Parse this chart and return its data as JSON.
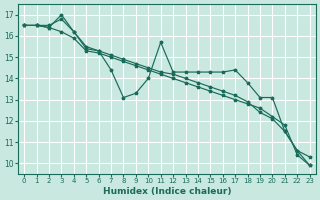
{
  "xlabel": "Humidex (Indice chaleur)",
  "xlim": [
    -0.5,
    23.5
  ],
  "ylim": [
    9.5,
    17.5
  ],
  "yticks": [
    10,
    11,
    12,
    13,
    14,
    15,
    16,
    17
  ],
  "xticks": [
    0,
    1,
    2,
    3,
    4,
    5,
    6,
    7,
    8,
    9,
    10,
    11,
    12,
    13,
    14,
    15,
    16,
    17,
    18,
    19,
    20,
    21,
    22,
    23
  ],
  "bg_color": "#c8e8e0",
  "grid_color": "#ffffff",
  "line_color": "#1a6b5a",
  "line1_x": [
    0,
    1,
    2,
    3,
    4,
    5,
    6,
    7,
    8,
    9,
    10,
    11,
    12,
    13,
    14,
    15,
    16,
    17,
    18,
    19,
    20,
    21,
    22,
    23
  ],
  "line1_y": [
    16.5,
    16.5,
    16.4,
    17.0,
    16.2,
    15.4,
    15.3,
    14.4,
    13.1,
    13.3,
    14.0,
    15.7,
    14.3,
    14.3,
    14.3,
    14.3,
    14.3,
    14.4,
    13.8,
    13.1,
    13.1,
    11.5,
    10.6,
    10.3
  ],
  "line2_x": [
    0,
    1,
    2,
    3,
    4,
    5,
    6,
    7,
    8,
    9,
    10,
    11,
    12,
    13,
    14,
    15,
    16,
    17,
    18,
    19,
    20,
    21,
    22,
    23
  ],
  "line2_y": [
    16.5,
    16.5,
    16.5,
    16.8,
    16.2,
    15.5,
    15.3,
    15.1,
    14.9,
    14.7,
    14.5,
    14.3,
    14.2,
    14.0,
    13.8,
    13.6,
    13.4,
    13.2,
    12.9,
    12.4,
    12.1,
    11.5,
    10.6,
    9.9
  ],
  "line3_x": [
    0,
    1,
    2,
    3,
    4,
    5,
    6,
    7,
    8,
    9,
    10,
    11,
    12,
    13,
    14,
    15,
    16,
    17,
    18,
    19,
    20,
    21,
    22,
    23
  ],
  "line3_y": [
    16.5,
    16.5,
    16.4,
    16.2,
    15.9,
    15.3,
    15.2,
    15.0,
    14.8,
    14.6,
    14.4,
    14.2,
    14.0,
    13.8,
    13.6,
    13.4,
    13.2,
    13.0,
    12.8,
    12.6,
    12.2,
    11.8,
    10.4,
    9.9
  ]
}
